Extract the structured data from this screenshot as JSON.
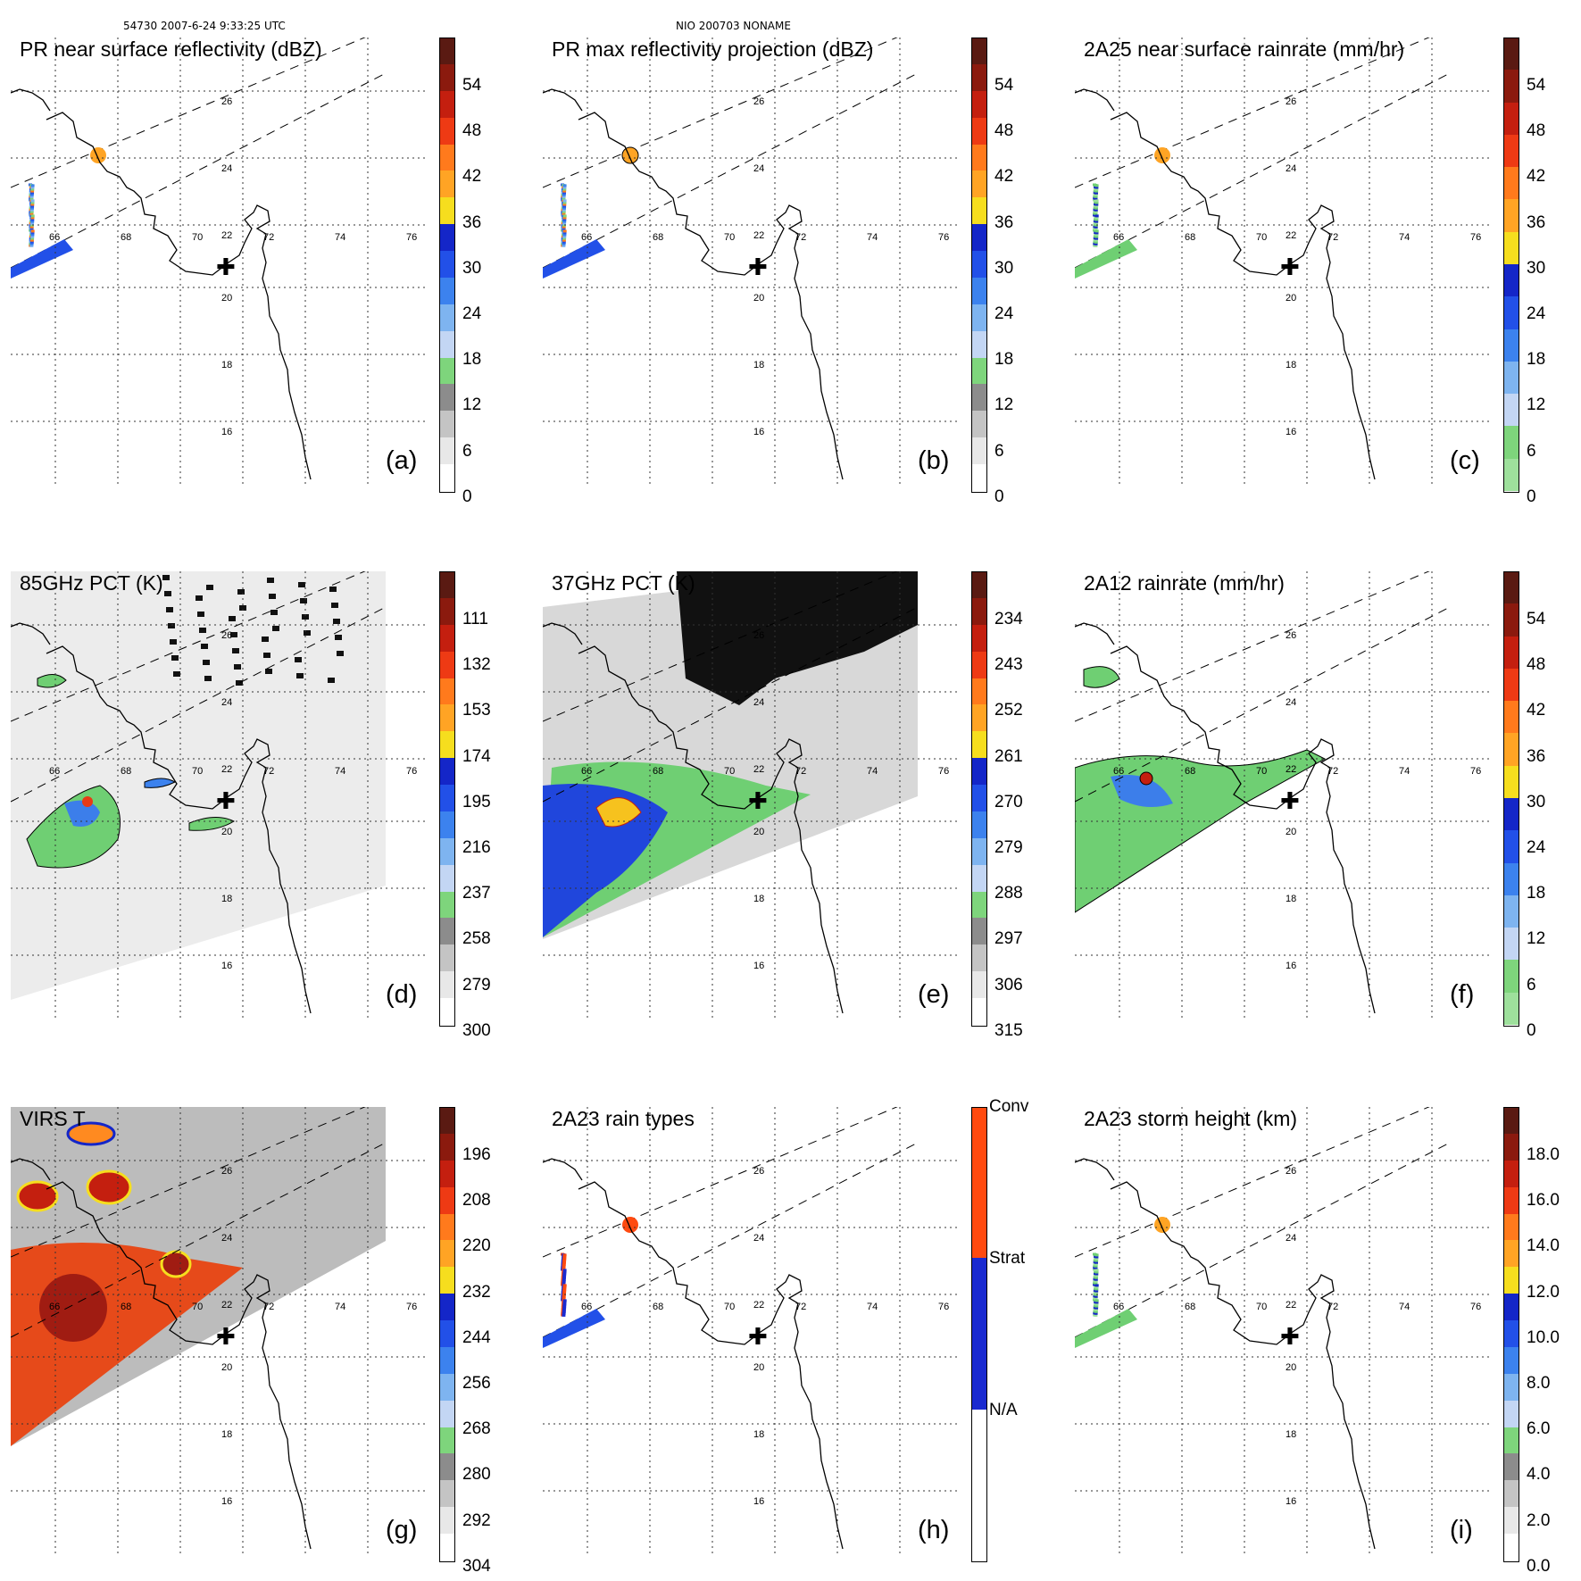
{
  "header": {
    "orbit_time": "54730 2007-6-24 9:33:25 UTC",
    "storm": "NIO 200703 NONAME"
  },
  "grid": {
    "lat_labels": [
      "26",
      "24",
      "22",
      "20",
      "18",
      "16"
    ],
    "lon_labels": [
      "66",
      "68",
      "70",
      "72",
      "74",
      "76"
    ],
    "center_marker": "✚"
  },
  "panels": [
    {
      "id": "a",
      "title": "PR near surface reflectivity (dBZ)",
      "label": "(a)",
      "ticks": [
        "54",
        "48",
        "42",
        "36",
        "30",
        "24",
        "18",
        "12",
        "6",
        "0"
      ],
      "scale": "dbz"
    },
    {
      "id": "b",
      "title": "PR max reflectivity projection (dBZ)",
      "label": "(b)",
      "ticks": [
        "54",
        "48",
        "42",
        "36",
        "30",
        "24",
        "18",
        "12",
        "6",
        "0"
      ],
      "scale": "dbz"
    },
    {
      "id": "c",
      "title": "2A25 near surface rainrate (mm/hr)",
      "label": "(c)",
      "ticks": [
        "54",
        "48",
        "42",
        "36",
        "30",
        "24",
        "18",
        "12",
        "6",
        "0"
      ],
      "scale": "rain"
    },
    {
      "id": "d",
      "title": "85GHz PCT (K)",
      "label": "(d)",
      "ticks": [
        "111",
        "132",
        "153",
        "174",
        "195",
        "216",
        "237",
        "258",
        "279",
        "300"
      ],
      "scale": "pct"
    },
    {
      "id": "e",
      "title": "37GHz PCT (K)",
      "label": "(e)",
      "ticks": [
        "234",
        "243",
        "252",
        "261",
        "270",
        "279",
        "288",
        "297",
        "306",
        "315"
      ],
      "scale": "pct"
    },
    {
      "id": "f",
      "title": "2A12 rainrate (mm/hr)",
      "label": "(f)",
      "ticks": [
        "54",
        "48",
        "42",
        "36",
        "30",
        "24",
        "18",
        "12",
        "6",
        "0"
      ],
      "scale": "rain"
    },
    {
      "id": "g",
      "title": "VIRS T",
      "label": "(g)",
      "ticks": [
        "196",
        "208",
        "220",
        "232",
        "244",
        "256",
        "268",
        "280",
        "292",
        "304"
      ],
      "scale": "pct"
    },
    {
      "id": "h",
      "title": "2A23 rain types",
      "label": "(h)",
      "ticks": [
        "Conv",
        "Strat",
        "N/A"
      ],
      "scale": "types"
    },
    {
      "id": "i",
      "title": "2A23 storm height (km)",
      "label": "(i)",
      "ticks": [
        "18.0",
        "16.0",
        "14.0",
        "12.0",
        "10.0",
        "8.0",
        "6.0",
        "4.0",
        "2.0",
        "0.0"
      ],
      "scale": "height"
    }
  ],
  "colors": {
    "dbz": [
      "#5a1a12",
      "#8b1a0e",
      "#c41f0f",
      "#ee3a14",
      "#ff7a1c",
      "#ffa424",
      "#f6de1e",
      "#1426c8",
      "#2250e8",
      "#3c82ee",
      "#7eb4f0",
      "#c3d6f4",
      "#7ed57c",
      "#8c8c8c",
      "#c4c4c4",
      "#e8e8e8",
      "#ffffff"
    ],
    "rain": [
      "#5a1a12",
      "#8b1a0e",
      "#c41f0f",
      "#ee3a14",
      "#ff7a1c",
      "#ffa424",
      "#f6de1e",
      "#1426c8",
      "#2250e8",
      "#3c82ee",
      "#7eb4f0",
      "#c3d6f4",
      "#7ed57c",
      "#9ee09c"
    ],
    "types": [
      "#ff4a10",
      "#1a2ad0",
      "#ffffff"
    ]
  }
}
